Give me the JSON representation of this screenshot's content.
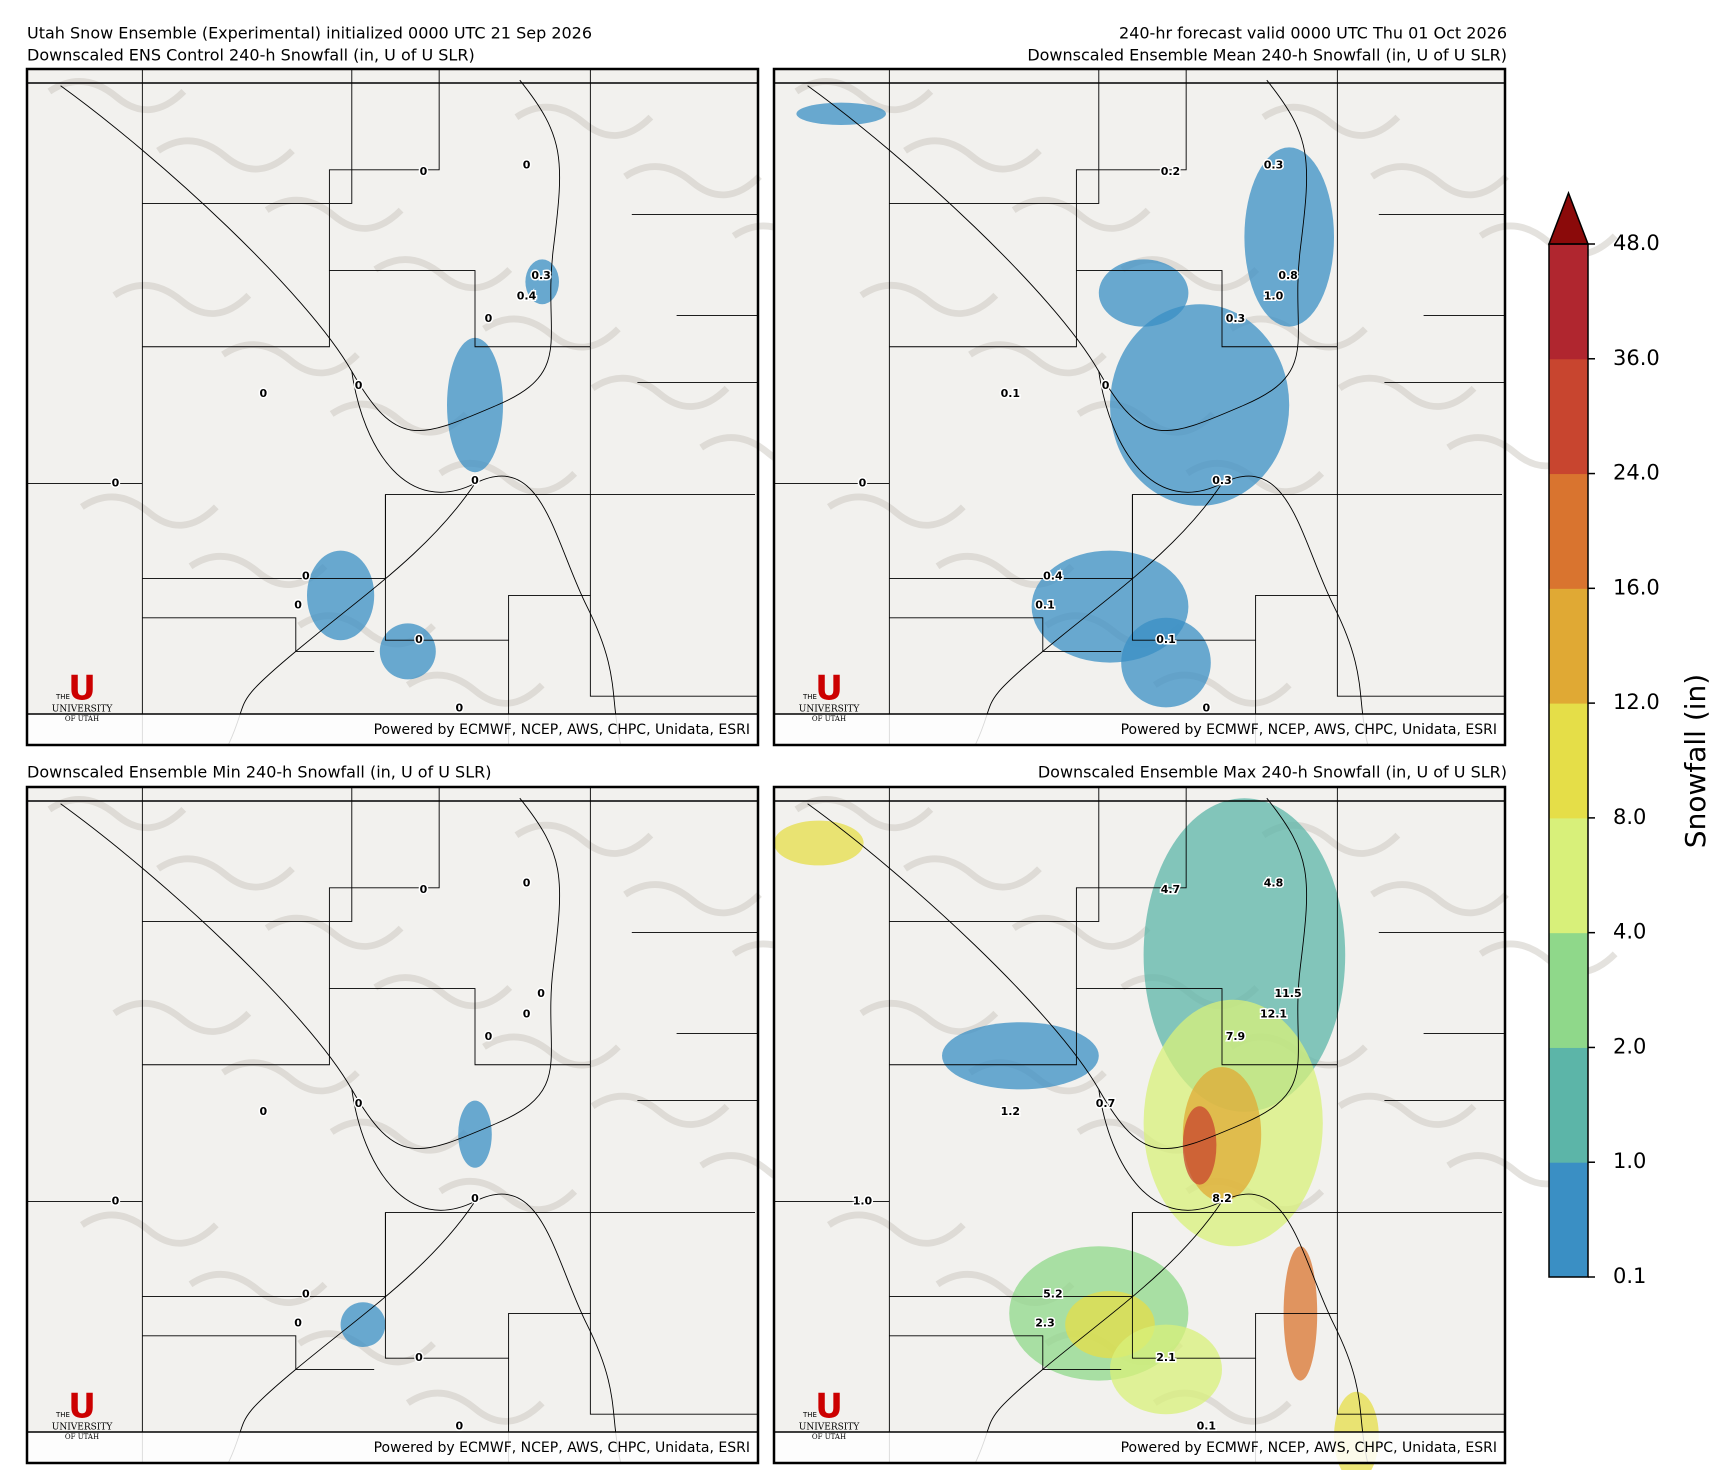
{
  "header": {
    "left_line1": "Utah Snow Ensemble (Experimental) initialized 0000 UTC 21 Sep 2026",
    "right_line1": "240-hr forecast valid 0000 UTC Thu 01 Oct 2026"
  },
  "panels": [
    {
      "title": "Downscaled ENS Control 240-h Snowfall (in, U of U SLR)",
      "points": [
        "0",
        "0",
        "0.3",
        "0.4",
        "0",
        "0",
        "0",
        "0",
        "0",
        "0",
        "0",
        "0",
        "0"
      ]
    },
    {
      "title": "Downscaled Ensemble Mean 240-h Snowfall (in, U of U SLR)",
      "points": [
        "0.2",
        "0.3",
        "0.8",
        "1.0",
        "0.3",
        "0",
        "0.1",
        "0",
        "0.3",
        "0.4",
        "0.1",
        "0.1",
        "0"
      ]
    },
    {
      "title": "Downscaled Ensemble Min 240-h Snowfall (in, U of U SLR)",
      "points": [
        "0",
        "0",
        "0",
        "0",
        "0",
        "0",
        "0",
        "0",
        "0",
        "0",
        "0",
        "0",
        "0"
      ]
    },
    {
      "title": "Downscaled Ensemble Max 240-h Snowfall (in, U of U SLR)",
      "points": [
        "4.7",
        "4.8",
        "11.5",
        "12.1",
        "7.9",
        "0.7",
        "1.2",
        "1.0",
        "8.2",
        "5.2",
        "2.3",
        "2.1",
        "0.1"
      ]
    }
  ],
  "footer": "Powered by ECMWF, NCEP, AWS, CHPC, Unidata, ESRI",
  "logo": {
    "the": "THE",
    "university": "UNIVERSITY",
    "of_utah": "OF UTAH"
  },
  "colorbar": {
    "label": "Snowfall (in)",
    "ticks": [
      {
        "value": 0.1,
        "label": "0.1"
      },
      {
        "value": 1,
        "label": "1.0"
      },
      {
        "value": 2,
        "label": "2.0"
      },
      {
        "value": 4,
        "label": "4.0"
      },
      {
        "value": 8,
        "label": "8.0"
      },
      {
        "value": 12,
        "label": "12.0"
      },
      {
        "value": 16,
        "label": "16.0"
      },
      {
        "value": 24,
        "label": "24.0"
      },
      {
        "value": 36,
        "label": "36.0"
      },
      {
        "value": 48,
        "label": "48.0"
      }
    ],
    "colors": [
      "#3a8fc4",
      "#5cb5a8",
      "#8fd88a",
      "#d8f07a",
      "#e5de48",
      "#e0a934",
      "#d9742f",
      "#c8452f",
      "#b0262f"
    ],
    "extend_color": "#8b0a0a"
  }
}
